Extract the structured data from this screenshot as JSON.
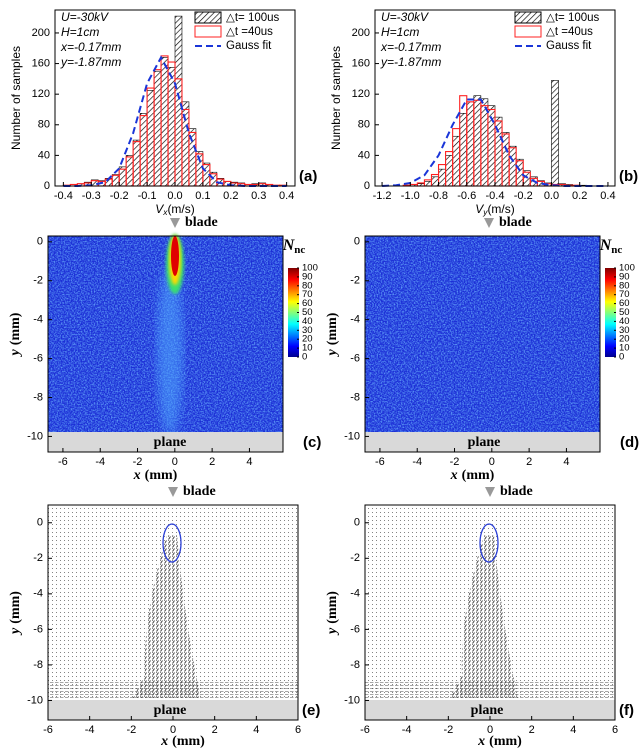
{
  "chart_data": [
    {
      "type": "histogram",
      "panel": "(a)",
      "ylabel": "Number of samples",
      "xlabel": {
        "var": "V",
        "sub": "x",
        "unit": "(m/s)"
      },
      "annotations": [
        "U=-30kV",
        "H=1cm",
        "x=-0.17mm",
        "y=-1.87mm"
      ],
      "xlim": [
        -0.43,
        0.43
      ],
      "ylim": [
        0,
        230
      ],
      "xticks": [
        -0.4,
        -0.3,
        -0.2,
        -0.1,
        {
          "value": 0,
          "label": "0.0"
        },
        0.1,
        0.2,
        0.3,
        0.4
      ],
      "yticks": [
        0,
        40,
        80,
        120,
        160,
        200
      ],
      "bins": [
        -0.4,
        -0.375,
        -0.35,
        -0.325,
        -0.3,
        -0.275,
        -0.25,
        -0.225,
        -0.2,
        -0.175,
        -0.15,
        -0.125,
        -0.1,
        -0.075,
        -0.05,
        -0.025,
        0,
        0.025,
        0.05,
        0.075,
        0.1,
        0.125,
        0.15,
        0.175,
        0.2,
        0.225,
        0.25,
        0.275,
        0.3,
        0.325,
        0.35,
        0.375,
        0.4
      ],
      "series": [
        {
          "name": "△t= 100us",
          "style": "hatched",
          "color": "#000000",
          "values": [
            1,
            2,
            3,
            5,
            8,
            7,
            10,
            15,
            25,
            40,
            60,
            95,
            125,
            150,
            168,
            155,
            222,
            110,
            75,
            45,
            30,
            18,
            10,
            6,
            5,
            4,
            2,
            3,
            4,
            2,
            1,
            1
          ]
        },
        {
          "name": "△t =40us",
          "style": "outline",
          "color": "#ff2020",
          "values": [
            1,
            2,
            3,
            4,
            7,
            6,
            9,
            14,
            22,
            38,
            58,
            92,
            128,
            152,
            170,
            162,
            140,
            100,
            70,
            42,
            28,
            16,
            9,
            6,
            4,
            3,
            2,
            2,
            3,
            2,
            1,
            1
          ]
        },
        {
          "name": "Gauss fit",
          "style": "dashed-line",
          "color": "#1a35d8",
          "x": [
            -0.4,
            -0.35,
            -0.3,
            -0.25,
            -0.2,
            -0.15,
            -0.1,
            -0.05,
            0,
            0.05,
            0.1,
            0.15,
            0.2,
            0.25,
            0.3,
            0.35,
            0.4
          ],
          "values": [
            0,
            0,
            1,
            5,
            23,
            69,
            134,
            168,
            134,
            69,
            23,
            5,
            1,
            0,
            0,
            0,
            0
          ]
        }
      ]
    },
    {
      "type": "histogram",
      "panel": "(b)",
      "ylabel": "Number of samples",
      "xlabel": {
        "var": "V",
        "sub": "y",
        "unit": "(m/s)"
      },
      "annotations": [
        "U=-30kV",
        "H=1cm",
        "x=-0.17mm",
        "y=-1.87mm"
      ],
      "xlim": [
        -1.25,
        0.45
      ],
      "ylim": [
        0,
        230
      ],
      "xticks": [
        -1.2,
        {
          "value": -1,
          "label": "-1.0"
        },
        -0.8,
        -0.6,
        -0.4,
        -0.2,
        {
          "value": 0,
          "label": "0.0"
        },
        0.2,
        0.4
      ],
      "yticks": [
        0,
        40,
        80,
        120,
        160,
        200
      ],
      "bins": [
        -1.2,
        -1.15,
        -1.1,
        -1.05,
        -1,
        -0.95,
        -0.9,
        -0.85,
        -0.8,
        -0.75,
        -0.7,
        -0.65,
        -0.6,
        -0.55,
        -0.5,
        -0.45,
        -0.4,
        -0.35,
        -0.3,
        -0.25,
        -0.2,
        -0.15,
        -0.1,
        -0.05,
        0,
        0.05,
        0.1,
        0.15,
        0.2,
        0.25,
        0.3,
        0.35,
        0.4
      ],
      "series": [
        {
          "name": "△t= 100us",
          "style": "hatched",
          "color": "#000000",
          "values": [
            0,
            0,
            0,
            1,
            2,
            3,
            6,
            12,
            22,
            40,
            65,
            95,
            110,
            118,
            114,
            105,
            90,
            70,
            52,
            35,
            20,
            12,
            7,
            4,
            138,
            3,
            2,
            1,
            1,
            0,
            0,
            0
          ]
        },
        {
          "name": "△t =40us",
          "style": "outline",
          "color": "#ff2020",
          "values": [
            0,
            0,
            0,
            1,
            2,
            4,
            8,
            15,
            28,
            45,
            75,
            118,
            110,
            112,
            105,
            100,
            85,
            68,
            50,
            33,
            18,
            10,
            6,
            3,
            2,
            2,
            1,
            1,
            0,
            0,
            0,
            0
          ]
        },
        {
          "name": "Gauss fit",
          "style": "dashed-line",
          "color": "#1a35d8",
          "x": [
            -1.2,
            -1.1,
            -1,
            -0.9,
            -0.8,
            -0.7,
            -0.6,
            -0.5,
            -0.4,
            -0.3,
            -0.2,
            -0.1,
            0,
            0.1,
            0.2,
            0.3,
            0.4
          ],
          "values": [
            0,
            1,
            4,
            14,
            40,
            80,
            113,
            113,
            80,
            40,
            14,
            4,
            1,
            0,
            0,
            0,
            0
          ]
        }
      ]
    },
    {
      "type": "heatmap",
      "panel": "(c)",
      "plume": true,
      "marker_top": "blade",
      "marker_bottom": "plane",
      "xlabel": {
        "var": "x",
        "unit": "(mm)"
      },
      "ylabel": {
        "var": "y",
        "unit": "(mm)"
      },
      "xlim": [
        -6.8,
        5.8
      ],
      "ylim": [
        -10.8,
        0.3
      ],
      "xticks": [
        -6,
        -4,
        -2,
        0,
        2,
        4
      ],
      "yticks": [
        0,
        -2,
        -4,
        -6,
        -8,
        -10
      ],
      "colorbar": {
        "title": {
          "var": "N",
          "sub": "nc"
        },
        "lim": [
          0,
          100
        ],
        "ticks": [
          0,
          10,
          20,
          30,
          40,
          50,
          60,
          70,
          80,
          90,
          100
        ]
      }
    },
    {
      "type": "heatmap",
      "panel": "(d)",
      "plume": false,
      "marker_top": "blade",
      "marker_bottom": "plane",
      "xlabel": {
        "var": "x",
        "unit": "(mm)"
      },
      "ylabel": {
        "var": "y",
        "unit": "(mm)"
      },
      "xlim": [
        -6.8,
        5.8
      ],
      "ylim": [
        -10.8,
        0.3
      ],
      "xticks": [
        -6,
        -4,
        -2,
        0,
        2,
        4
      ],
      "yticks": [
        0,
        -2,
        -4,
        -6,
        -8,
        -10
      ],
      "colorbar": {
        "title": {
          "var": "N",
          "sub": "nc"
        },
        "lim": [
          0,
          100
        ],
        "ticks": [
          0,
          10,
          20,
          30,
          40,
          50,
          60,
          70,
          80,
          90,
          100
        ]
      }
    },
    {
      "type": "quiver",
      "panel": "(e)",
      "marker_top": "blade",
      "marker_bottom": "plane",
      "xlabel": {
        "var": "x",
        "unit": "(mm)"
      },
      "ylabel": {
        "var": "y",
        "unit": "(mm)"
      },
      "xlim": [
        -6,
        6
      ],
      "ylim": [
        -11.1,
        1
      ],
      "xticks": [
        -6,
        -4,
        -2,
        0,
        2,
        4,
        6
      ],
      "yticks": [
        0,
        -2,
        -4,
        -6,
        -8,
        -10
      ]
    },
    {
      "type": "quiver",
      "panel": "(f)",
      "marker_top": "blade",
      "marker_bottom": "plane",
      "xlabel": {
        "var": "x",
        "unit": "(mm)"
      },
      "ylabel": {
        "var": "y",
        "unit": "(mm)"
      },
      "xlim": [
        -6,
        6
      ],
      "ylim": [
        -11.1,
        1
      ],
      "xticks": [
        -6,
        -4,
        -2,
        0,
        2,
        4,
        6
      ],
      "yticks": [
        0,
        -2,
        -4,
        -6,
        -8,
        -10
      ]
    }
  ]
}
